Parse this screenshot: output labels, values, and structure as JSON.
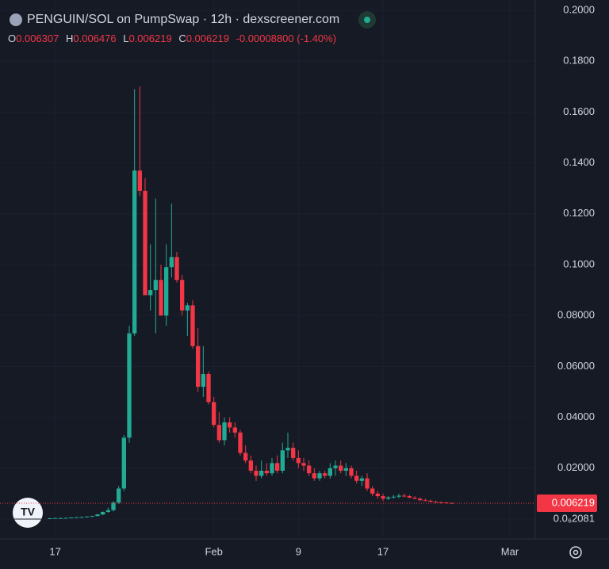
{
  "chart_data": {
    "type": "candlestick",
    "title": "PENGUIN/SOL on PumpSwap · 12h · dexscreener.com",
    "ohlc_legend": {
      "o_label": "O",
      "o": "0.006307",
      "h_label": "H",
      "h": "0.006476",
      "l_label": "L",
      "l": "0.006219",
      "c_label": "C",
      "c": "0.006219",
      "change": "-0.00008800 (-1.40%)"
    },
    "up_color": "#22ab94",
    "down_color": "#f23645",
    "open": [
      0.0003,
      0.0003,
      0.0004,
      0.0004,
      0.0005,
      0.0006,
      0.0007,
      0.0008,
      0.001,
      0.0012,
      0.0018,
      0.0028,
      0.0035,
      0.0065,
      0.012,
      0.032,
      0.073,
      0.137,
      0.129,
      0.088,
      0.09,
      0.094,
      0.08,
      0.099,
      0.103,
      0.094,
      0.082,
      0.084,
      0.068,
      0.052,
      0.057,
      0.046,
      0.037,
      0.031,
      0.038,
      0.036,
      0.034,
      0.026,
      0.023,
      0.019,
      0.017,
      0.019,
      0.018,
      0.022,
      0.019,
      0.027,
      0.028,
      0.024,
      0.022,
      0.021,
      0.018,
      0.016,
      0.018,
      0.017,
      0.02,
      0.021,
      0.019,
      0.02,
      0.017,
      0.015,
      0.016,
      0.012,
      0.01,
      0.009,
      0.008,
      0.0085,
      0.0088,
      0.0092,
      0.009,
      0.0084,
      0.008,
      0.0074,
      0.0072,
      0.0068,
      0.0066,
      0.0065,
      0.006307
    ],
    "high": [
      0.0004,
      0.0004,
      0.0005,
      0.0006,
      0.0007,
      0.0008,
      0.0009,
      0.0011,
      0.0013,
      0.002,
      0.003,
      0.0045,
      0.007,
      0.013,
      0.033,
      0.076,
      0.169,
      0.17,
      0.134,
      0.108,
      0.126,
      0.1,
      0.108,
      0.124,
      0.105,
      0.096,
      0.085,
      0.086,
      0.075,
      0.068,
      0.058,
      0.048,
      0.042,
      0.04,
      0.04,
      0.038,
      0.035,
      0.029,
      0.025,
      0.021,
      0.023,
      0.022,
      0.024,
      0.025,
      0.03,
      0.034,
      0.03,
      0.027,
      0.024,
      0.023,
      0.02,
      0.019,
      0.019,
      0.022,
      0.023,
      0.023,
      0.022,
      0.021,
      0.019,
      0.017,
      0.018,
      0.013,
      0.011,
      0.01,
      0.009,
      0.0095,
      0.01,
      0.01,
      0.0095,
      0.009,
      0.0085,
      0.008,
      0.0076,
      0.0072,
      0.0069,
      0.0068,
      0.006476
    ],
    "low": [
      0.0002,
      0.0002,
      0.0003,
      0.0003,
      0.0004,
      0.0005,
      0.0005,
      0.0006,
      0.0008,
      0.001,
      0.0015,
      0.0025,
      0.003,
      0.006,
      0.011,
      0.03,
      0.072,
      0.127,
      0.088,
      0.082,
      0.073,
      0.08,
      0.076,
      0.095,
      0.093,
      0.08,
      0.072,
      0.067,
      0.05,
      0.048,
      0.045,
      0.036,
      0.03,
      0.029,
      0.034,
      0.032,
      0.025,
      0.022,
      0.018,
      0.015,
      0.016,
      0.017,
      0.017,
      0.018,
      0.018,
      0.024,
      0.023,
      0.02,
      0.019,
      0.017,
      0.015,
      0.015,
      0.016,
      0.016,
      0.017,
      0.018,
      0.017,
      0.016,
      0.014,
      0.013,
      0.011,
      0.009,
      0.008,
      0.007,
      0.0075,
      0.008,
      0.0082,
      0.0085,
      0.0082,
      0.0078,
      0.0072,
      0.007,
      0.0066,
      0.0064,
      0.0063,
      0.0062,
      0.006219
    ],
    "close": [
      0.0003,
      0.0004,
      0.0004,
      0.0005,
      0.0006,
      0.0007,
      0.0008,
      0.001,
      0.0012,
      0.0018,
      0.0028,
      0.0035,
      0.0065,
      0.012,
      0.032,
      0.073,
      0.137,
      0.129,
      0.088,
      0.09,
      0.094,
      0.08,
      0.099,
      0.103,
      0.094,
      0.082,
      0.084,
      0.068,
      0.052,
      0.057,
      0.046,
      0.037,
      0.031,
      0.038,
      0.036,
      0.034,
      0.026,
      0.023,
      0.019,
      0.017,
      0.019,
      0.018,
      0.022,
      0.019,
      0.027,
      0.028,
      0.024,
      0.022,
      0.021,
      0.018,
      0.016,
      0.018,
      0.017,
      0.02,
      0.021,
      0.019,
      0.02,
      0.017,
      0.015,
      0.016,
      0.012,
      0.01,
      0.009,
      0.008,
      0.0085,
      0.0088,
      0.0092,
      0.009,
      0.0084,
      0.008,
      0.0074,
      0.0072,
      0.0068,
      0.0066,
      0.0065,
      0.0063,
      0.006219
    ],
    "last_price_label": "0.006219",
    "xlim": [
      -9.45,
      91.8
    ],
    "xticks": [
      {
        "value": 1,
        "label": "17"
      },
      {
        "value": 31,
        "label": "Feb"
      },
      {
        "value": 47,
        "label": "9"
      },
      {
        "value": 63,
        "label": "17"
      },
      {
        "value": 87,
        "label": "Mar"
      }
    ],
    "ylim": [
      -0.0078,
      0.20405
    ],
    "yticks": [
      {
        "value": 2.081e-07,
        "label": "0.0₆2081"
      },
      {
        "value": 0.02,
        "label": "0.02000"
      },
      {
        "value": 0.04,
        "label": "0.04000"
      },
      {
        "value": 0.06,
        "label": "0.06000"
      },
      {
        "value": 0.08,
        "label": "0.08000"
      },
      {
        "value": 0.1,
        "label": "0.1000"
      },
      {
        "value": 0.12,
        "label": "0.1200"
      },
      {
        "value": 0.14,
        "label": "0.1400"
      },
      {
        "value": 0.16,
        "label": "0.1600"
      },
      {
        "value": 0.18,
        "label": "0.1800"
      },
      {
        "value": 0.2,
        "label": "0.2000"
      }
    ]
  }
}
